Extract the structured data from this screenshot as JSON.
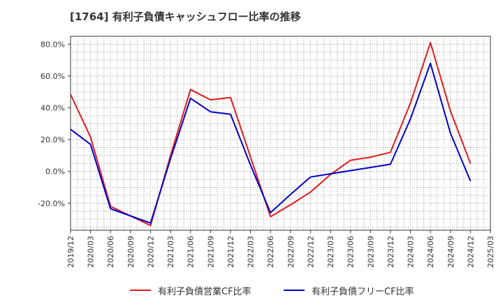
{
  "title": "[1764]  有利子負債キャッシュフロー比率の推移",
  "chart_data": {
    "type": "line",
    "title": "[1764]  有利子負債キャッシュフロー比率の推移",
    "xlabel": "",
    "ylabel": "",
    "x": [
      "2019/12",
      "2020/03",
      "2020/06",
      "2020/09",
      "2020/12",
      "2021/03",
      "2021/06",
      "2021/09",
      "2021/12",
      "2022/03",
      "2022/06",
      "2022/09",
      "2022/12",
      "2023/03",
      "2023/06",
      "2023/09",
      "2023/12",
      "2024/03",
      "2024/06",
      "2024/09",
      "2024/12",
      "2025/03"
    ],
    "ylim": [
      -37,
      85
    ],
    "yticks": [
      -20,
      0,
      20,
      40,
      60,
      80
    ],
    "ytick_labels": [
      "-20.0%",
      "0.0%",
      "20.0%",
      "40.0%",
      "60.0%",
      "80.0%"
    ],
    "grid": true,
    "legend_position": "bottom",
    "series": [
      {
        "name": "有利子負債営業CF比率",
        "color": "#e31a1c",
        "values": [
          48.5,
          21.5,
          -22.0,
          -28.0,
          -34.0,
          10.0,
          51.5,
          45.0,
          46.5,
          9.0,
          -28.5,
          -21.0,
          -13.0,
          -2.0,
          7.0,
          9.0,
          12.0,
          43.0,
          81.0,
          38.0,
          5.0,
          null
        ]
      },
      {
        "name": "有利子負債フリーCF比率",
        "color": "#0000cc",
        "values": [
          26.5,
          17.0,
          -23.5,
          -28.0,
          -32.5,
          8.0,
          46.0,
          37.5,
          36.0,
          4.0,
          -26.0,
          -14.5,
          -3.5,
          -1.5,
          0.5,
          2.5,
          4.5,
          33.0,
          68.0,
          24.0,
          -6.0,
          null
        ]
      }
    ]
  },
  "legend": {
    "items": [
      "有利子負債営業CF比率",
      "有利子負債フリーCF比率"
    ]
  }
}
